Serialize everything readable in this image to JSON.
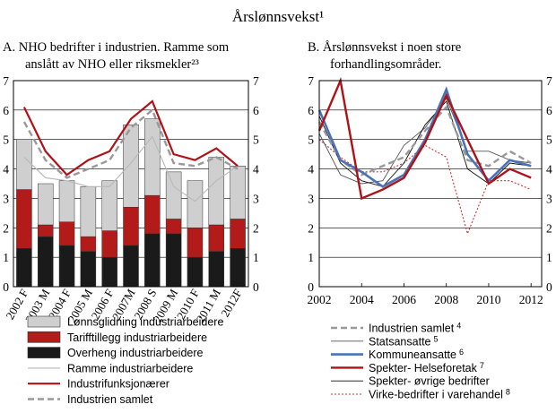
{
  "title": "Årslønnsvekst¹",
  "colors": {
    "gray_fill": "#cfcfcf",
    "red_fill": "#b31b1b",
    "black_fill": "#1a1a1a",
    "red_line": "#b01116",
    "dash_gray": "#999999",
    "blue_line": "#4a72b8",
    "thin_gray": "#b8b8b8",
    "grid": "#000000"
  },
  "chart_data": [
    {
      "id": "A",
      "type": "bar",
      "subtitle_lines": [
        "A.  NHO bedrifter i industrien. Ramme som",
        "anslått av NHO eller riksmekler²³"
      ],
      "categories": [
        "2002 F",
        "2003 M",
        "2004 F",
        "2005 M",
        "2006 F",
        "2007M",
        "2008 S",
        "2009 M",
        "2010 F",
        "2011 M",
        "2012F"
      ],
      "ylim": [
        0,
        7
      ],
      "yticks": [
        "0",
        "1",
        "2",
        "3",
        "4",
        "5",
        "6",
        "7"
      ],
      "stack_order": [
        "overheng",
        "tariff",
        "glidning"
      ],
      "series": [
        {
          "key": "glidning",
          "name": "Lønnsglidning industriarbeidere",
          "kind": "bar",
          "values": [
            1.7,
            1.4,
            1.4,
            1.7,
            1.7,
            2.8,
            2.6,
            1.6,
            1.6,
            2.3,
            1.8
          ]
        },
        {
          "key": "tariff",
          "name": "Tarifftillegg industriarbeidere",
          "kind": "bar",
          "values": [
            2.0,
            0.4,
            0.8,
            0.5,
            0.9,
            1.3,
            1.3,
            0.5,
            1.0,
            0.9,
            1.0
          ]
        },
        {
          "key": "overheng",
          "name": "Overheng industriarbeidere",
          "kind": "bar",
          "values": [
            1.3,
            1.7,
            1.4,
            1.2,
            1.0,
            1.4,
            1.8,
            1.8,
            1.0,
            1.2,
            1.3
          ]
        },
        {
          "key": "ramme",
          "name": "Ramme industriarbeidere",
          "kind": "line",
          "values": [
            4.4,
            3.7,
            3.6,
            3.4,
            3.4,
            4.2,
            5.1,
            3.4,
            2.9,
            3.6,
            4.1
          ]
        },
        {
          "key": "funksjonaerer",
          "name": "Industrifunksjonærer",
          "kind": "line",
          "values": [
            6.1,
            4.6,
            3.8,
            4.3,
            4.6,
            5.7,
            6.3,
            4.5,
            4.3,
            4.7,
            4.1
          ]
        },
        {
          "key": "samlet",
          "name": "Industrien samlet",
          "kind": "dashed",
          "values": [
            5.6,
            4.3,
            3.7,
            4.0,
            4.3,
            5.4,
            6.0,
            4.2,
            4.1,
            4.4,
            4.0
          ]
        }
      ]
    },
    {
      "id": "B",
      "type": "line",
      "subtitle_lines": [
        "B.  Årslønnsvekst i noen store",
        "forhandlingsområder."
      ],
      "x": [
        2002,
        2003,
        2004,
        2005,
        2006,
        2007,
        2008,
        2009,
        2010,
        2011,
        2012
      ],
      "xticks": [
        "2002",
        "2004",
        "2006",
        "2008",
        "2010",
        "2012"
      ],
      "xlim": [
        2002,
        2012.5
      ],
      "ylim": [
        0,
        7
      ],
      "yticks": [
        "0",
        "1",
        "2",
        "3",
        "4",
        "5",
        "6",
        "7"
      ],
      "series": [
        {
          "key": "industri",
          "name": "Industrien samlet",
          "sup": "4",
          "style": "dashed",
          "values": [
            5.6,
            4.3,
            3.8,
            4.1,
            4.4,
            5.3,
            6.1,
            4.3,
            4.1,
            4.6,
            4.2
          ]
        },
        {
          "key": "stat",
          "name": "Statsansatte",
          "sup": "5",
          "style": "thin",
          "values": [
            5.2,
            3.8,
            3.5,
            3.6,
            4.8,
            5.4,
            6.4,
            4.6,
            4.6,
            4.3,
            4.2
          ]
        },
        {
          "key": "kommune",
          "name": "Kommuneansatte",
          "sup": "6",
          "style": "blue",
          "values": [
            6.0,
            4.3,
            3.9,
            3.4,
            3.8,
            5.0,
            6.7,
            4.5,
            3.6,
            4.3,
            4.1
          ]
        },
        {
          "key": "helse",
          "name": "Spekter- Helseforetak",
          "sup": "7",
          "style": "red",
          "values": [
            5.3,
            7.0,
            3.0,
            3.3,
            3.7,
            4.9,
            6.5,
            5.0,
            3.5,
            4.0,
            3.7
          ]
        },
        {
          "key": "ovrige",
          "name": "Spekter- øvrige bedrifter",
          "sup": "",
          "style": "thin-dark",
          "values": [
            5.8,
            4.2,
            3.6,
            3.4,
            4.2,
            5.5,
            6.3,
            4.0,
            3.5,
            4.2,
            4.1
          ]
        },
        {
          "key": "virke",
          "name": "Virke-bedrifter i varehandel",
          "sup": "8",
          "style": "dotted-red",
          "values": [
            5.0,
            4.4,
            3.9,
            3.9,
            4.2,
            4.8,
            4.4,
            1.8,
            3.6,
            3.6,
            3.3
          ]
        }
      ]
    }
  ]
}
